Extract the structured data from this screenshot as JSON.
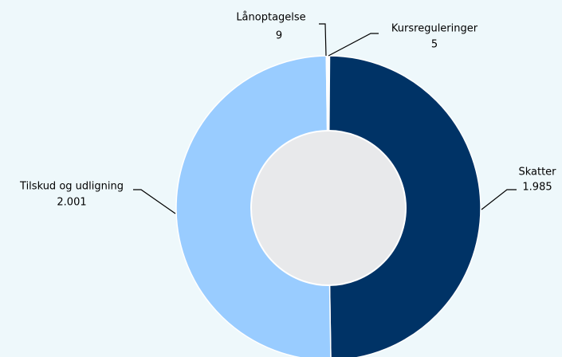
{
  "chart_data": {
    "type": "donut",
    "categories": [
      "Kursreguleringer",
      "Skatter",
      "Tilskud og udligning",
      "Lånoptagelse"
    ],
    "values": [
      5,
      1985,
      2001,
      9
    ],
    "value_labels": [
      "5",
      "1.985",
      "2.001",
      "9"
    ],
    "colors": [
      "#ffffff",
      "#003366",
      "#99ccff",
      "#ffffff"
    ]
  }
}
